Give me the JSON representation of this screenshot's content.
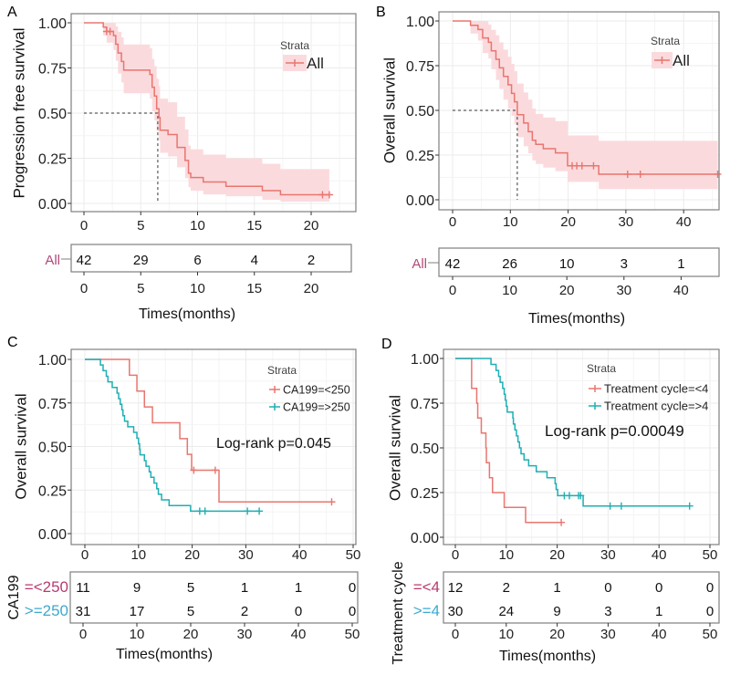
{
  "colors": {
    "red": "#E8766F",
    "teal": "#1FAFB4",
    "band": "#FBDADD",
    "row_red": "#B83A6E",
    "row_teal": "#3BA9CF",
    "all_label": "#B04A7A"
  },
  "chart_data": [
    {
      "panel": "A",
      "type": "line",
      "subtype": "kaplan-meier",
      "ylabel": "Progression free survival",
      "xlabel": "Times(months)",
      "yticks": [
        "0.00",
        "0.25",
        "0.50",
        "0.75",
        "1.00"
      ],
      "xticks": [
        0,
        5,
        10,
        15,
        20
      ],
      "xlim": [
        0,
        22
      ],
      "ylim": [
        0,
        1
      ],
      "grid": true,
      "legend_position": "top-right",
      "legend_title": "Strata",
      "median_survival": 6.5,
      "series": [
        {
          "name": "All",
          "color": "red",
          "end": 21.6,
          "censors": [
            2.0,
            2.3,
            21.0,
            21.6
          ],
          "steps": [
            [
              0,
              1,
              1,
              1
            ],
            [
              1.7,
              0.976,
              0.93,
              1
            ],
            [
              2.0,
              0.952,
              0.89,
              1
            ],
            [
              2.6,
              0.929,
              0.85,
              1
            ],
            [
              2.8,
              0.881,
              0.79,
              0.98
            ],
            [
              3.0,
              0.833,
              0.72,
              0.95
            ],
            [
              3.3,
              0.786,
              0.67,
              0.92
            ],
            [
              3.5,
              0.738,
              0.61,
              0.88
            ],
            [
              5.8,
              0.714,
              0.58,
              0.86
            ],
            [
              6.0,
              0.643,
              0.51,
              0.8
            ],
            [
              6.2,
              0.595,
              0.46,
              0.76
            ],
            [
              6.4,
              0.524,
              0.4,
              0.69
            ],
            [
              6.6,
              0.476,
              0.35,
              0.65
            ],
            [
              6.7,
              0.405,
              0.28,
              0.58
            ],
            [
              7.4,
              0.381,
              0.26,
              0.56
            ],
            [
              8.2,
              0.31,
              0.2,
              0.48
            ],
            [
              8.9,
              0.238,
              0.14,
              0.41
            ],
            [
              9.2,
              0.167,
              0.09,
              0.32
            ],
            [
              9.4,
              0.143,
              0.07,
              0.3
            ],
            [
              10.5,
              0.119,
              0.05,
              0.27
            ],
            [
              12.5,
              0.095,
              0.04,
              0.25
            ],
            [
              15.7,
              0.071,
              0.02,
              0.22
            ],
            [
              17.3,
              0.048,
              0.01,
              0.19
            ]
          ]
        }
      ],
      "risk_table": {
        "row_labels": [
          "All"
        ],
        "row_colors": [
          "all_label"
        ],
        "times": [
          0,
          5,
          10,
          15,
          20
        ],
        "rows": [
          [
            42,
            29,
            6,
            4,
            2
          ]
        ],
        "title": ""
      }
    },
    {
      "panel": "B",
      "type": "line",
      "subtype": "kaplan-meier",
      "ylabel": "Overall survival",
      "xlabel": "Times(months)",
      "yticks": [
        "0.00",
        "0.25",
        "0.50",
        "0.75",
        "1.00"
      ],
      "xticks": [
        0,
        10,
        20,
        30,
        40
      ],
      "xlim": [
        0,
        47
      ],
      "ylim": [
        0,
        1
      ],
      "grid": true,
      "legend_position": "top-right",
      "legend_title": "Strata",
      "median_survival": 11.2,
      "series": [
        {
          "name": "All",
          "color": "red",
          "end": 45.9,
          "censors": [
            20.7,
            21.5,
            22.4,
            24.4,
            30.3,
            32.5,
            45.9
          ],
          "steps": [
            [
              0,
              1,
              1,
              1
            ],
            [
              3.1,
              0.976,
              0.93,
              1
            ],
            [
              4.4,
              0.952,
              0.89,
              1
            ],
            [
              5.2,
              0.905,
              0.82,
              1
            ],
            [
              6.2,
              0.881,
              0.79,
              0.98
            ],
            [
              6.7,
              0.833,
              0.73,
              0.95
            ],
            [
              7.5,
              0.786,
              0.67,
              0.92
            ],
            [
              8.1,
              0.738,
              0.62,
              0.88
            ],
            [
              8.8,
              0.69,
              0.56,
              0.84
            ],
            [
              9.6,
              0.643,
              0.51,
              0.8
            ],
            [
              10.2,
              0.595,
              0.47,
              0.76
            ],
            [
              10.7,
              0.548,
              0.42,
              0.72
            ],
            [
              11.2,
              0.476,
              0.35,
              0.65
            ],
            [
              12.3,
              0.429,
              0.3,
              0.6
            ],
            [
              13.1,
              0.381,
              0.26,
              0.56
            ],
            [
              13.8,
              0.333,
              0.22,
              0.51
            ],
            [
              14.4,
              0.31,
              0.2,
              0.48
            ],
            [
              15.7,
              0.286,
              0.18,
              0.46
            ],
            [
              17.8,
              0.262,
              0.16,
              0.44
            ],
            [
              19.9,
              0.19,
              0.1,
              0.36
            ],
            [
              25.3,
              0.143,
              0.06,
              0.33
            ]
          ]
        }
      ],
      "risk_table": {
        "row_labels": [
          "All"
        ],
        "row_colors": [
          "all_label"
        ],
        "times": [
          0,
          10,
          20,
          30,
          40
        ],
        "rows": [
          [
            42,
            26,
            10,
            3,
            1
          ]
        ],
        "title": ""
      }
    },
    {
      "panel": "C",
      "type": "line",
      "subtype": "kaplan-meier",
      "ylabel": "Overall survival",
      "xlabel": "Times(months)",
      "yticks": [
        "0.00",
        "0.25",
        "0.50",
        "0.75",
        "1.00"
      ],
      "xticks": [
        0,
        10,
        20,
        30,
        40,
        50
      ],
      "xlim": [
        0,
        50
      ],
      "ylim": [
        0,
        1
      ],
      "grid": true,
      "legend_position": "top-right",
      "legend_title": "Strata",
      "annotation": "Log-rank p=0.045",
      "series": [
        {
          "name": "CA199=<250",
          "color": "red",
          "end": 46.0,
          "censors": [
            20.3,
            24.3,
            46.0
          ],
          "steps": [
            [
              0,
              1
            ],
            [
              8.3,
              0.909
            ],
            [
              9.7,
              0.818
            ],
            [
              11.1,
              0.727
            ],
            [
              12.6,
              0.636
            ],
            [
              17.7,
              0.545
            ],
            [
              19.1,
              0.455
            ],
            [
              19.9,
              0.364
            ],
            [
              25.0,
              0.182
            ]
          ]
        },
        {
          "name": "CA199=>250",
          "color": "teal",
          "end": 32.5,
          "censors": [
            21.4,
            22.4,
            30.3,
            32.5
          ],
          "steps": [
            [
              0,
              1
            ],
            [
              2.9,
              0.968
            ],
            [
              3.4,
              0.935
            ],
            [
              4.0,
              0.903
            ],
            [
              4.3,
              0.871
            ],
            [
              5.1,
              0.839
            ],
            [
              6.0,
              0.806
            ],
            [
              6.3,
              0.774
            ],
            [
              6.6,
              0.742
            ],
            [
              6.9,
              0.71
            ],
            [
              7.1,
              0.677
            ],
            [
              7.4,
              0.645
            ],
            [
              8.0,
              0.613
            ],
            [
              9.1,
              0.581
            ],
            [
              9.7,
              0.548
            ],
            [
              10.0,
              0.516
            ],
            [
              10.2,
              0.484
            ],
            [
              10.3,
              0.452
            ],
            [
              11.1,
              0.419
            ],
            [
              11.4,
              0.387
            ],
            [
              12.0,
              0.355
            ],
            [
              12.3,
              0.323
            ],
            [
              12.9,
              0.29
            ],
            [
              13.4,
              0.258
            ],
            [
              13.7,
              0.226
            ],
            [
              14.3,
              0.194
            ],
            [
              15.7,
              0.161
            ],
            [
              19.7,
              0.129
            ]
          ]
        }
      ],
      "risk_table": {
        "title": "CA199",
        "row_labels": [
          "=<250",
          ">=250"
        ],
        "row_colors": [
          "row_red",
          "row_teal"
        ],
        "times": [
          0,
          10,
          20,
          30,
          40,
          50
        ],
        "rows": [
          [
            11,
            9,
            5,
            1,
            1,
            0
          ],
          [
            31,
            17,
            5,
            2,
            0,
            0
          ]
        ]
      }
    },
    {
      "panel": "D",
      "type": "line",
      "subtype": "kaplan-meier",
      "ylabel": "Overall survival",
      "xlabel": "Times(months)",
      "yticks": [
        "0.00",
        "0.25",
        "0.50",
        "0.75",
        "1.00"
      ],
      "xticks": [
        0,
        10,
        20,
        30,
        40,
        50
      ],
      "xlim": [
        0,
        50
      ],
      "ylim": [
        0,
        1
      ],
      "grid": true,
      "legend_position": "top-right",
      "legend_title": "Strata",
      "annotation": "Log-rank p=0.00049",
      "series": [
        {
          "name": "Treatment cycle=<4",
          "color": "red",
          "end": 20.8,
          "censors": [
            20.8
          ],
          "steps": [
            [
              0,
              1
            ],
            [
              3.2,
              0.833
            ],
            [
              4.2,
              0.75
            ],
            [
              4.4,
              0.667
            ],
            [
              5.1,
              0.583
            ],
            [
              6.0,
              0.5
            ],
            [
              6.1,
              0.417
            ],
            [
              6.7,
              0.333
            ],
            [
              7.3,
              0.25
            ],
            [
              9.6,
              0.167
            ],
            [
              13.8,
              0.083
            ]
          ]
        },
        {
          "name": "Treatment cycle=>4",
          "color": "teal",
          "end": 46.0,
          "censors": [
            21.4,
            22.4,
            24.2,
            24.6,
            30.4,
            32.6,
            46.0
          ],
          "steps": [
            [
              0,
              1
            ],
            [
              7.0,
              0.967
            ],
            [
              8.0,
              0.933
            ],
            [
              8.5,
              0.9
            ],
            [
              8.8,
              0.867
            ],
            [
              9.3,
              0.833
            ],
            [
              9.6,
              0.8
            ],
            [
              9.8,
              0.767
            ],
            [
              10.0,
              0.733
            ],
            [
              10.2,
              0.7
            ],
            [
              11.3,
              0.667
            ],
            [
              11.4,
              0.633
            ],
            [
              11.7,
              0.6
            ],
            [
              12.0,
              0.567
            ],
            [
              12.3,
              0.533
            ],
            [
              12.6,
              0.5
            ],
            [
              12.9,
              0.467
            ],
            [
              13.5,
              0.433
            ],
            [
              14.4,
              0.4
            ],
            [
              15.9,
              0.367
            ],
            [
              18.0,
              0.333
            ],
            [
              19.6,
              0.3
            ],
            [
              19.8,
              0.267
            ],
            [
              20.1,
              0.233
            ],
            [
              25.1,
              0.175
            ]
          ]
        }
      ],
      "risk_table": {
        "title": "Treatment cycle",
        "row_labels": [
          "=<4",
          ">=4"
        ],
        "row_colors": [
          "row_red",
          "row_teal"
        ],
        "times": [
          0,
          10,
          20,
          30,
          40,
          50
        ],
        "rows": [
          [
            12,
            2,
            1,
            0,
            0,
            0
          ],
          [
            30,
            24,
            9,
            3,
            1,
            0
          ]
        ]
      }
    }
  ]
}
